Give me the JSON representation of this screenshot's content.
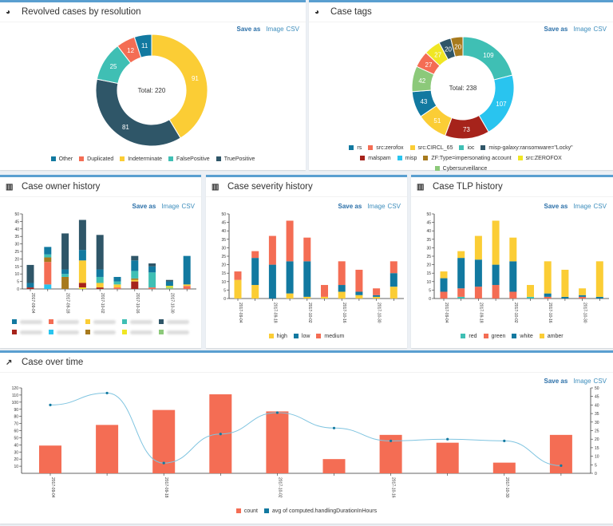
{
  "save": {
    "label": "Save as",
    "image": "Image",
    "csv": "CSV"
  },
  "panels": {
    "resolution": {
      "title": "Revolved cases by resolution",
      "icon": "pie-chart-icon"
    },
    "tags": {
      "title": "Case tags",
      "icon": "pie-chart-icon"
    },
    "owner": {
      "title": "Case owner history",
      "icon": "bar-chart-icon"
    },
    "severity": {
      "title": "Case severity history",
      "icon": "bar-chart-icon"
    },
    "tlp": {
      "title": "Case TLP history",
      "icon": "bar-chart-icon"
    },
    "time": {
      "title": "Case over time",
      "icon": "line-chart-icon"
    }
  },
  "chart_data": [
    {
      "id": "resolution",
      "type": "pie",
      "donut": true,
      "center_label": "Total: 220",
      "legend": "bottom",
      "slices": [
        {
          "name": "Indeterminate",
          "value": 91,
          "color": "#fbcd35"
        },
        {
          "name": "TruePositive",
          "value": 81,
          "color": "#2f5668"
        },
        {
          "name": "FalsePositive",
          "value": 25,
          "color": "#3fbfb4"
        },
        {
          "name": "Duplicated",
          "value": 12,
          "color": "#f46d54"
        },
        {
          "name": "Other",
          "value": 11,
          "color": "#1279a0"
        }
      ],
      "legend_order": [
        "Other",
        "Duplicated",
        "Indeterminate",
        "FalsePositive",
        "TruePositive"
      ]
    },
    {
      "id": "tags",
      "type": "pie",
      "donut": true,
      "center_label": "Total: 238",
      "legend": "bottom",
      "slices": [
        {
          "name": "ioc",
          "value": 109,
          "color": "#3fbfb4"
        },
        {
          "name": "misp",
          "value": 107,
          "color": "#29c4ef"
        },
        {
          "name": "malspam",
          "value": 73,
          "color": "#a6231b"
        },
        {
          "name": "src:CIRCL_65",
          "value": 51,
          "color": "#fbcd35"
        },
        {
          "name": "rs",
          "value": 43,
          "color": "#1279a0"
        },
        {
          "name": "Cybersurveillance",
          "value": 42,
          "color": "#8cc97a"
        },
        {
          "name": "src:zerofox",
          "value": 27,
          "color": "#f46d54"
        },
        {
          "name": "src:ZEROFOX",
          "value": 27,
          "color": "#f0e624"
        },
        {
          "name": "misp-galaxy:ransomware=\"Locky\"",
          "value": 20,
          "color": "#2f5668"
        },
        {
          "name": "ZF:Type=impersonating account",
          "value": 20,
          "color": "#a77a1e"
        }
      ],
      "legend_order": [
        "rs",
        "src:zerofox",
        "src:CIRCL_65",
        "ioc",
        "misp-galaxy:ransomware=\"Locky\"",
        "malspam",
        "misp",
        "ZF:Type=impersonating account",
        "src:ZEROFOX",
        "Cybersurveillance"
      ]
    },
    {
      "id": "owner",
      "type": "bar",
      "stacked": true,
      "ylim": [
        0,
        50
      ],
      "yticks": [
        0,
        5,
        10,
        15,
        20,
        25,
        30,
        35,
        40,
        45,
        50
      ],
      "legend": "bottom",
      "categories": [
        "2017-09-04",
        "2017-09-11",
        "2017-09-18",
        "2017-09-25",
        "2017-10-02",
        "2017-10-09",
        "2017-10-16",
        "2017-10-23",
        "2017-10-30",
        "2017-11-06"
      ],
      "tick_labels": [
        "2017-09-04",
        "",
        "2017-09-18",
        "",
        "2017-10-02",
        "",
        "2017-10-16",
        "",
        "2017-10-30",
        ""
      ],
      "series": [
        {
          "color": "#29c4ef",
          "values": [
            0,
            3,
            0,
            0,
            0,
            0,
            0,
            0,
            0,
            0
          ]
        },
        {
          "color": "#8cc97a",
          "values": [
            0,
            0,
            0,
            0,
            0,
            0,
            0,
            0,
            1,
            0
          ]
        },
        {
          "color": "#f0e624",
          "values": [
            0,
            0,
            0,
            1,
            0,
            0,
            0,
            0,
            1,
            0
          ]
        },
        {
          "color": "#a6231b",
          "values": [
            1,
            0,
            0,
            3,
            1,
            0,
            5,
            0,
            0,
            0
          ]
        },
        {
          "color": "#f46d54",
          "values": [
            0,
            15,
            0,
            0,
            0,
            1,
            0,
            1,
            0,
            2
          ]
        },
        {
          "color": "#fbcd35",
          "values": [
            0,
            0,
            0,
            15,
            3,
            2,
            1,
            0,
            0,
            1
          ]
        },
        {
          "color": "#a77a1e",
          "values": [
            0,
            3,
            8,
            0,
            0,
            0,
            1,
            0,
            0,
            0
          ]
        },
        {
          "color": "#3fbfb4",
          "values": [
            0,
            2,
            2,
            0,
            4,
            2,
            5,
            10,
            0,
            0
          ]
        },
        {
          "color": "#1279a0",
          "values": [
            3,
            5,
            3,
            7,
            5,
            3,
            7,
            4,
            3,
            19
          ]
        },
        {
          "color": "#2f5668",
          "values": [
            12,
            0,
            24,
            20,
            23,
            0,
            3,
            2,
            1,
            0
          ]
        }
      ],
      "legend_order_colors": [
        "#1279a0",
        "#f46d54",
        "#fbcd35",
        "#3fbfb4",
        "#2f5668",
        "#a6231b",
        "#29c4ef",
        "#a77a1e",
        "#f0e624",
        "#8cc97a"
      ]
    },
    {
      "id": "severity",
      "type": "bar",
      "stacked": true,
      "ylim": [
        0,
        50
      ],
      "yticks": [
        0,
        5,
        10,
        15,
        20,
        25,
        30,
        35,
        40,
        45,
        50
      ],
      "legend": "bottom",
      "categories": [
        "2017-09-04",
        "2017-09-11",
        "2017-09-18",
        "2017-09-25",
        "2017-10-02",
        "2017-10-09",
        "2017-10-16",
        "2017-10-23",
        "2017-10-30",
        "2017-11-06"
      ],
      "tick_labels": [
        "2017-09-04",
        "",
        "2017-09-18",
        "",
        "2017-10-02",
        "",
        "2017-10-16",
        "",
        "2017-10-30",
        ""
      ],
      "series": [
        {
          "name": "high",
          "color": "#fbcd35",
          "values": [
            11,
            8,
            0,
            3,
            1,
            1,
            4,
            2,
            1,
            7
          ]
        },
        {
          "name": "low",
          "color": "#1279a0",
          "values": [
            0,
            16,
            20,
            19,
            21,
            0,
            4,
            2,
            1,
            8
          ]
        },
        {
          "name": "medium",
          "color": "#f46d54",
          "values": [
            5,
            4,
            17,
            24,
            14,
            7,
            14,
            13,
            4,
            7
          ]
        }
      ]
    },
    {
      "id": "tlp",
      "type": "bar",
      "stacked": true,
      "ylim": [
        0,
        50
      ],
      "yticks": [
        0,
        5,
        10,
        15,
        20,
        25,
        30,
        35,
        40,
        45,
        50
      ],
      "legend": "bottom",
      "categories": [
        "2017-09-04",
        "2017-09-11",
        "2017-09-18",
        "2017-09-25",
        "2017-10-02",
        "2017-10-09",
        "2017-10-16",
        "2017-10-23",
        "2017-10-30",
        "2017-11-06"
      ],
      "tick_labels": [
        "2017-09-04",
        "",
        "2017-09-18",
        "",
        "2017-10-02",
        "",
        "2017-10-16",
        "",
        "2017-10-30",
        ""
      ],
      "series": [
        {
          "name": "red",
          "color": "#3fbfb4",
          "values": [
            0,
            1,
            0,
            0,
            0,
            1,
            0,
            0,
            0,
            0
          ]
        },
        {
          "name": "green",
          "color": "#f46d54",
          "values": [
            4,
            5,
            7,
            8,
            4,
            0,
            1,
            0,
            1,
            0
          ]
        },
        {
          "name": "white",
          "color": "#1279a0",
          "values": [
            8,
            18,
            16,
            12,
            18,
            0,
            2,
            1,
            1,
            1
          ]
        },
        {
          "name": "amber",
          "color": "#fbcd35",
          "values": [
            4,
            4,
            14,
            26,
            14,
            7,
            19,
            16,
            4,
            21
          ]
        }
      ]
    },
    {
      "id": "time",
      "type": "bar+line",
      "legend": "bottom",
      "ylim": [
        0,
        120
      ],
      "yticks": [
        10,
        20,
        30,
        40,
        50,
        60,
        70,
        80,
        90,
        100,
        110,
        120
      ],
      "y2lim": [
        0,
        50
      ],
      "y2ticks": [
        0,
        5,
        10,
        15,
        20,
        25,
        30,
        35,
        40,
        45,
        50
      ],
      "categories": [
        "2017-09-04",
        "2017-09-11",
        "2017-09-18",
        "2017-09-25",
        "2017-10-02",
        "2017-10-09",
        "2017-10-16",
        "2017-10-23",
        "2017-10-30",
        "2017-11-06"
      ],
      "tick_labels": [
        "2017-09-04",
        "",
        "2017-09-18",
        "",
        "2017-10-02",
        "",
        "2017-10-16",
        "",
        "2017-10-30",
        ""
      ],
      "series": [
        {
          "name": "count",
          "type": "bar",
          "axis": "left",
          "color": "#f46d54",
          "values": [
            39,
            68,
            89,
            111,
            87,
            20,
            54,
            43,
            15,
            54
          ]
        },
        {
          "name": "avg of computed.handlingDurationInHours",
          "type": "line",
          "axis": "right",
          "color": "#1279a0",
          "values": [
            40,
            47,
            6,
            23,
            35.5,
            26.5,
            19,
            20,
            19,
            4.5
          ]
        }
      ]
    }
  ]
}
